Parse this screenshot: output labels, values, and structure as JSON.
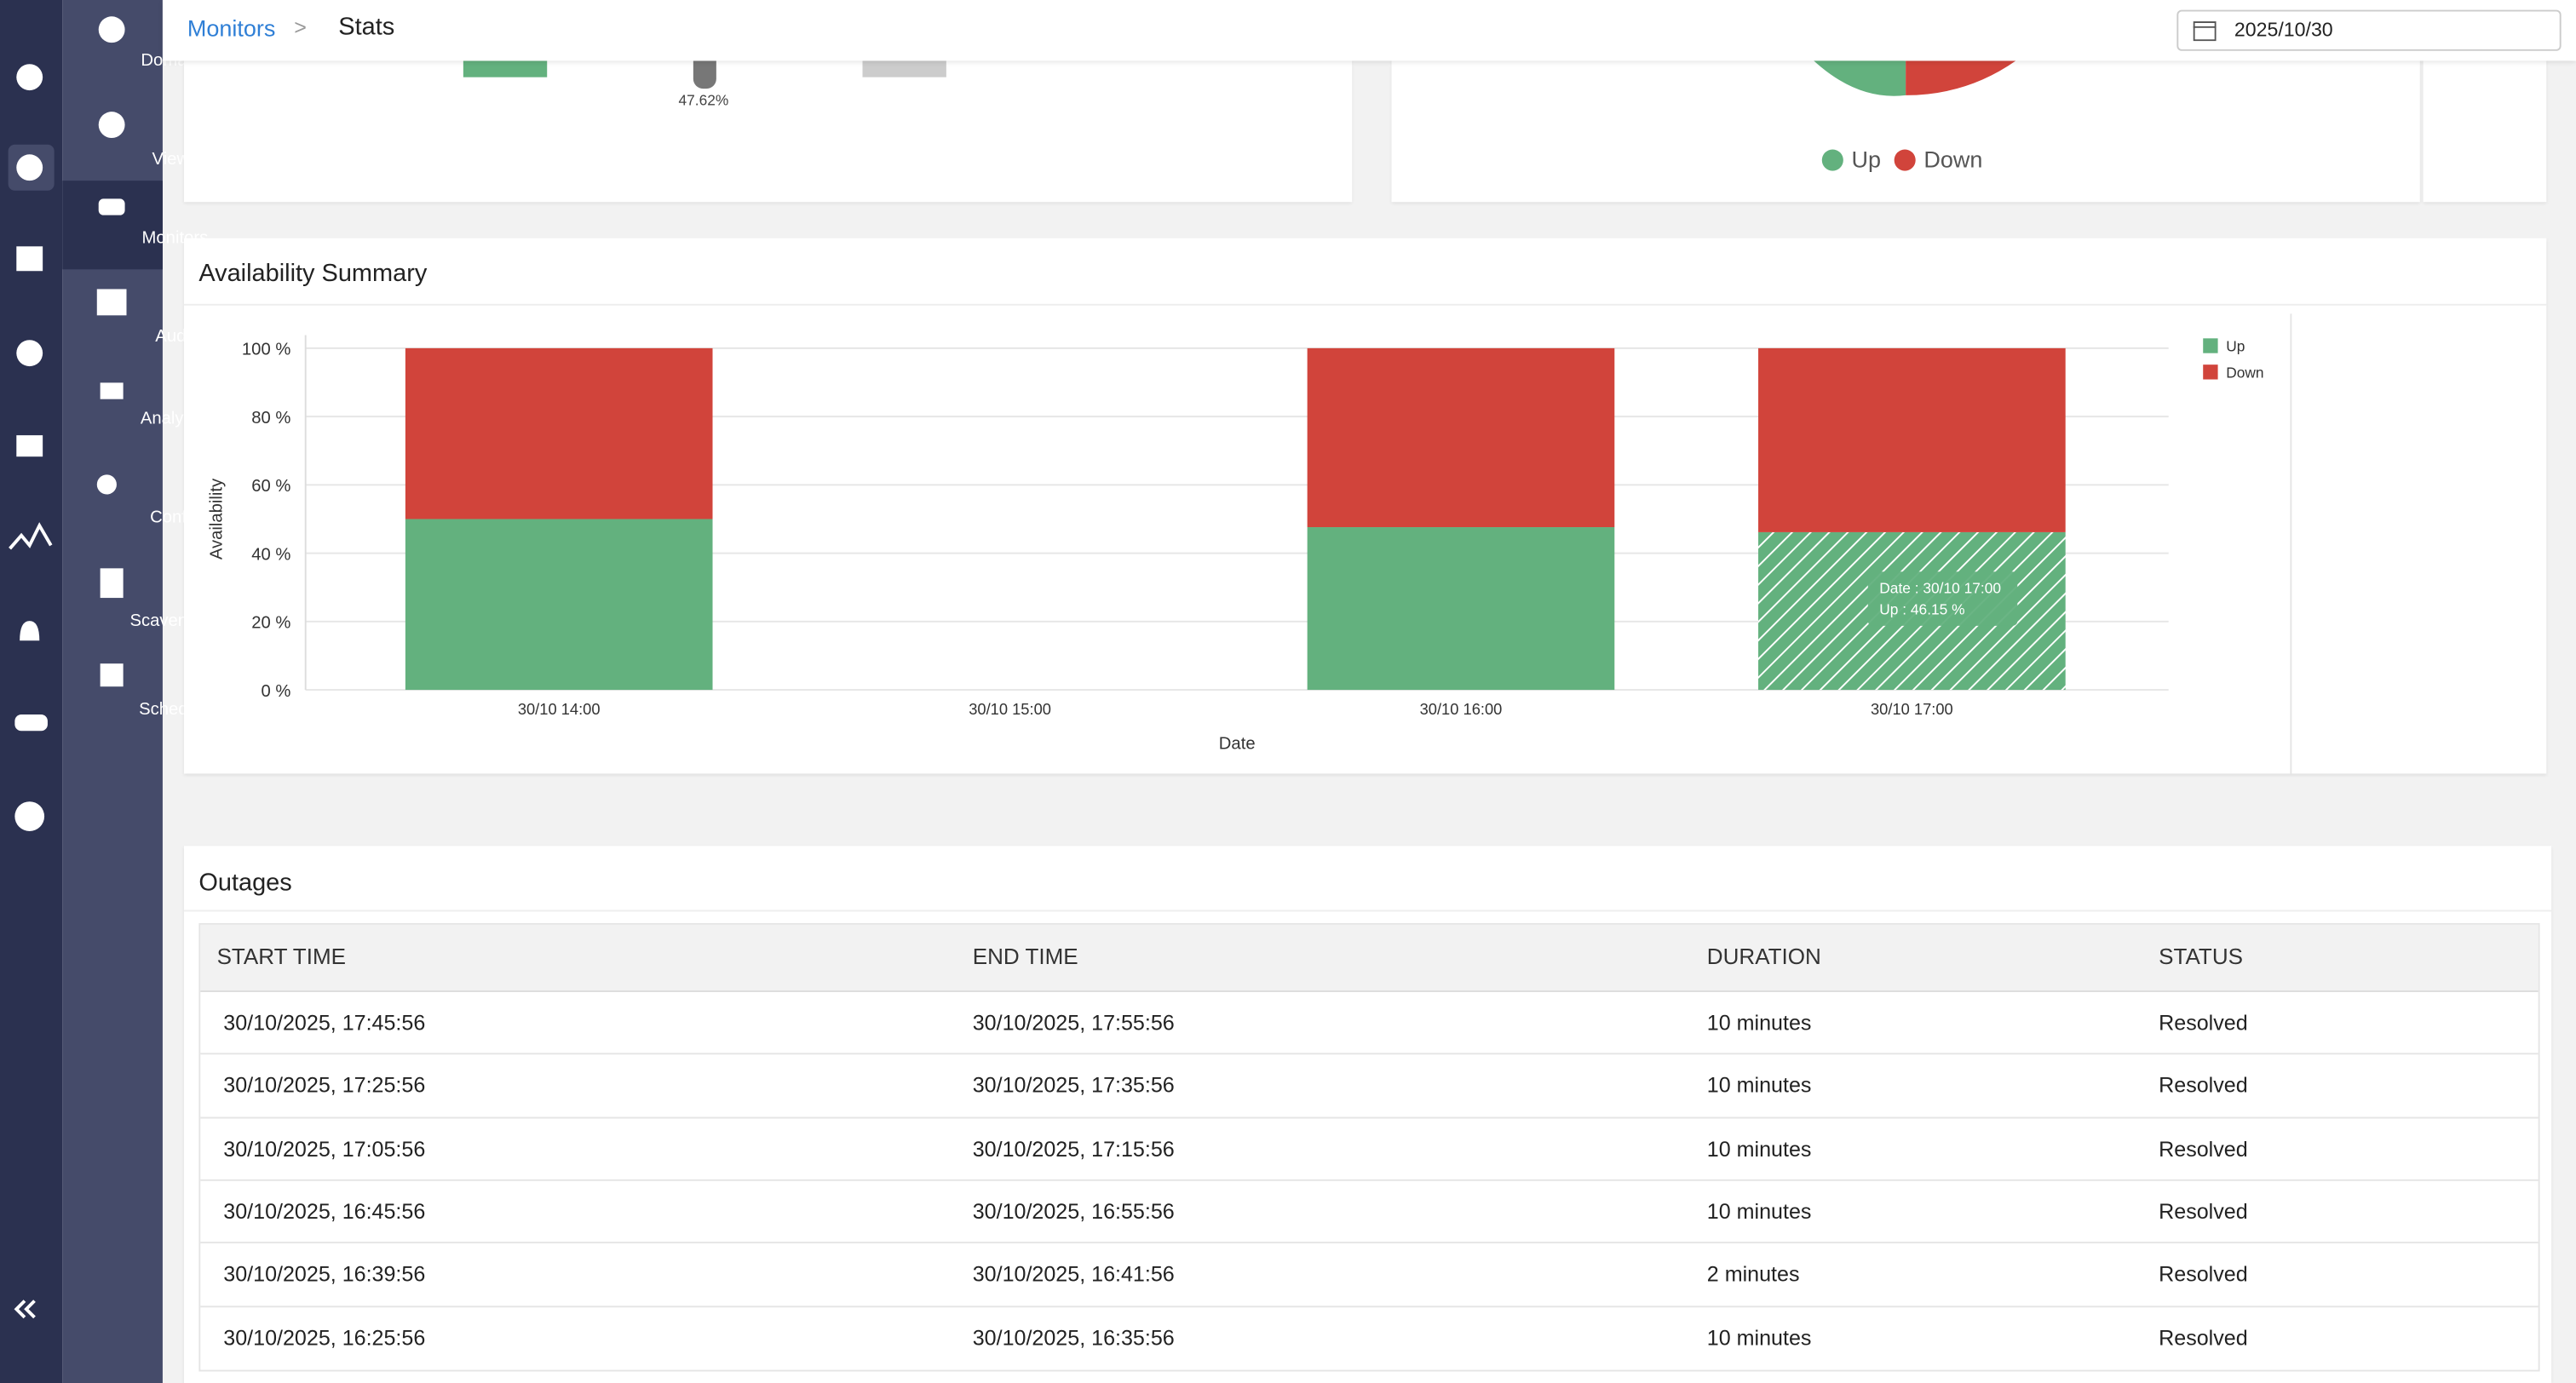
{
  "header": {
    "breadcrumb": [
      "Monitors",
      "Stats"
    ],
    "date": "2025/10/30"
  },
  "sidebar": {
    "items": [
      "Domains",
      "Views",
      "Monitors",
      "Audit",
      "Analytics",
      "Config",
      "Scavenging",
      "Schedule"
    ]
  },
  "top_cards": {
    "gauge_label": "47.62%",
    "pie_legend": [
      "Up",
      "Down"
    ]
  },
  "availability": {
    "title": "Availability Summary",
    "chart_data": {
      "type": "bar",
      "stacked": true,
      "x_label": "Date",
      "y_label": "Availability",
      "categories": [
        "30/10 14:00",
        "30/10 15:00",
        "30/10 16:00",
        "30/10 17:00"
      ],
      "series": [
        {
          "name": "Up",
          "color": "#63b17e",
          "values": [
            50,
            null,
            47.62,
            46.15
          ]
        },
        {
          "name": "Down",
          "color": "#d1443b",
          "values": [
            50,
            null,
            52.38,
            53.85
          ]
        }
      ],
      "ylim": [
        0,
        100
      ],
      "yticks": [
        {
          "value": 0,
          "label": "0 %"
        },
        {
          "value": 20,
          "label": "20 %"
        },
        {
          "value": 40,
          "label": "40 %"
        },
        {
          "value": 60,
          "label": "60 %"
        },
        {
          "value": 80,
          "label": "80 %"
        },
        {
          "value": 100,
          "label": "100 %"
        }
      ],
      "grid": true,
      "legend": "right",
      "tooltip": [
        "Date : 30/10 17:00",
        "Up : 46.15 %"
      ]
    }
  },
  "outages": {
    "title": "Outages",
    "columns": [
      "START TIME",
      "END TIME",
      "DURATION",
      "STATUS"
    ],
    "rows": [
      [
        "30/10/2025, 17:45:56",
        "30/10/2025, 17:55:56",
        "10 minutes",
        "Resolved"
      ],
      [
        "30/10/2025, 17:25:56",
        "30/10/2025, 17:35:56",
        "10 minutes",
        "Resolved"
      ],
      [
        "30/10/2025, 17:05:56",
        "30/10/2025, 17:15:56",
        "10 minutes",
        "Resolved"
      ],
      [
        "30/10/2025, 16:45:56",
        "30/10/2025, 16:55:56",
        "10 minutes",
        "Resolved"
      ],
      [
        "30/10/2025, 16:39:56",
        "30/10/2025, 16:41:56",
        "2 minutes",
        "Resolved"
      ],
      [
        "30/10/2025, 16:25:56",
        "30/10/2025, 16:35:56",
        "10 minutes",
        "Resolved"
      ]
    ]
  }
}
